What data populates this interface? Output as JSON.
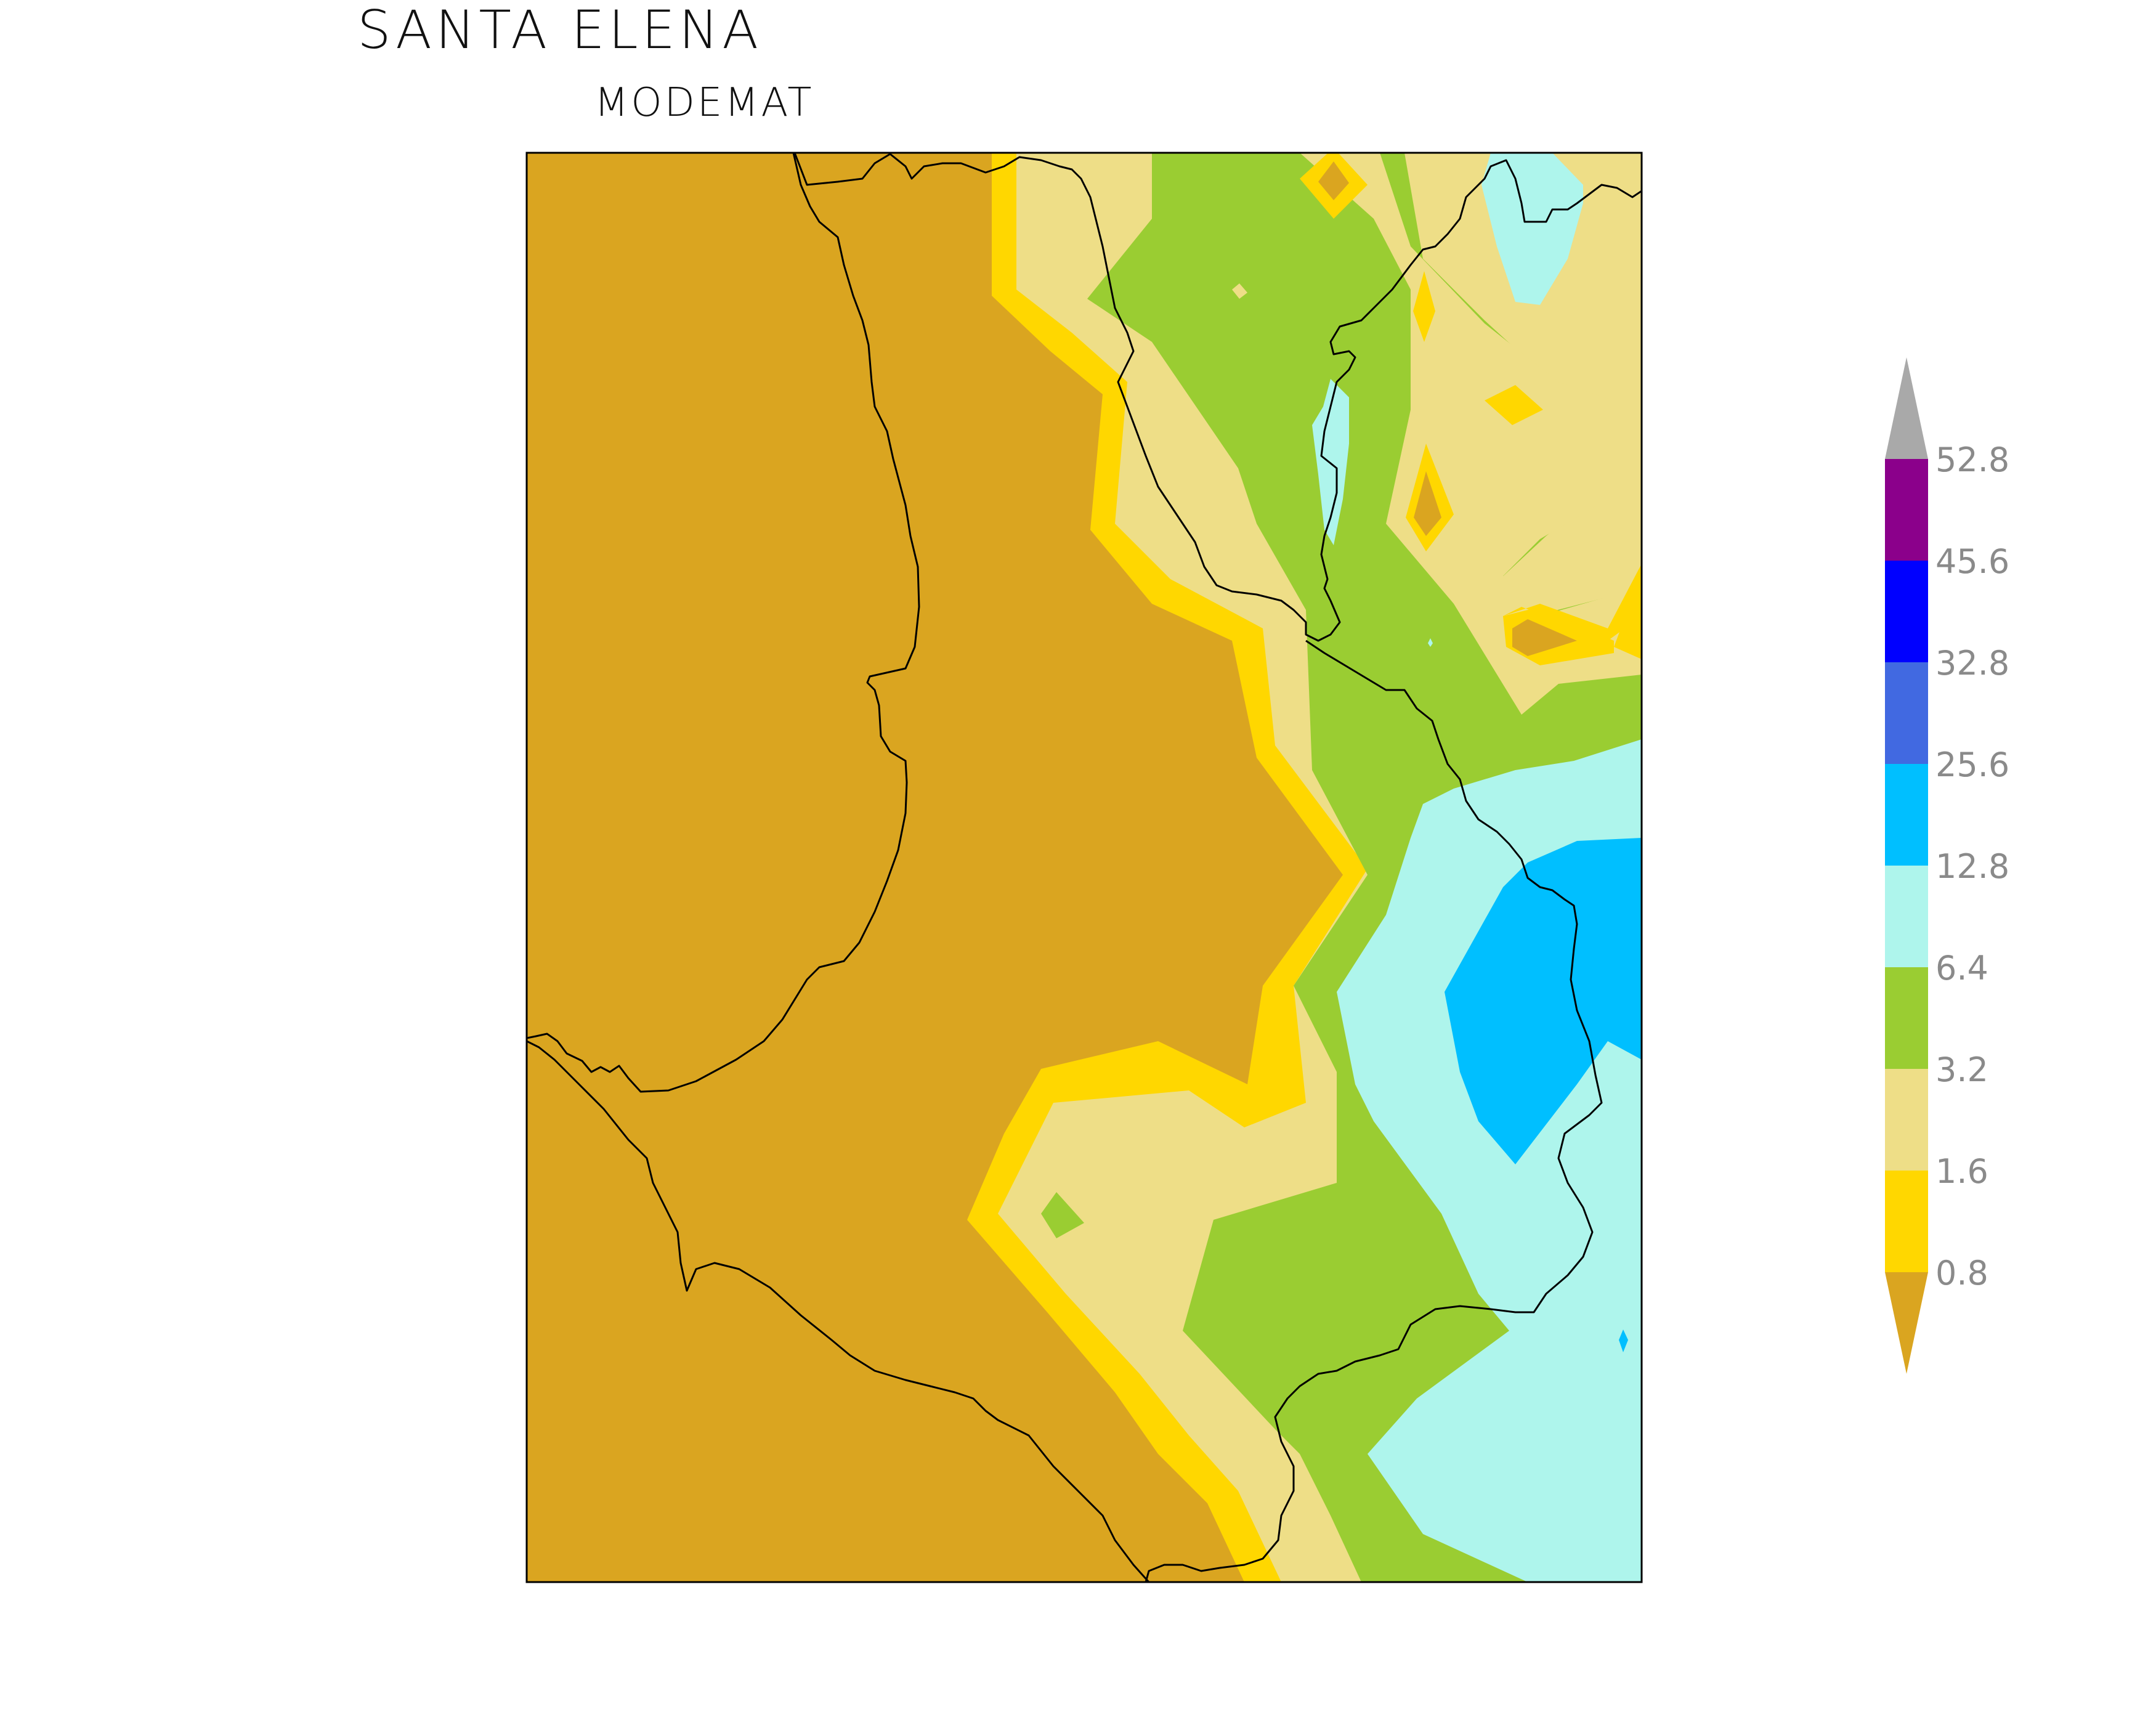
{
  "header": {
    "title": "SANTA  ELENA",
    "subtitle": "MODEMAT"
  },
  "colors": {
    "bg_low": "#DAA520",
    "c_0_8": "#FFD700",
    "c_1_6": "#EEDE87",
    "c_3_2": "#9ACD32",
    "c_6_4": "#AEF5EC",
    "c_12_8": "#00BFFF",
    "c_25_6": "#4169E1",
    "c_32_8": "#0000FF",
    "c_45_6": "#8B008B",
    "c_52_8": "#A9A9A9",
    "border": "#000000"
  },
  "legend": {
    "labels": [
      "52.8",
      "45.6",
      "32.8",
      "25.6",
      "12.8",
      "6.4",
      "3.2",
      "1.6",
      "0.8"
    ],
    "bins": [
      {
        "color": "#8B008B",
        "from": "45.6",
        "to": "52.8"
      },
      {
        "color": "#0000FF",
        "from": "32.8",
        "to": "45.6"
      },
      {
        "color": "#4169E1",
        "from": "25.6",
        "to": "32.8"
      },
      {
        "color": "#00BFFF",
        "from": "12.8",
        "to": "25.6"
      },
      {
        "color": "#AEF5EC",
        "from": "6.4",
        "to": "12.8"
      },
      {
        "color": "#9ACD32",
        "from": "3.2",
        "to": "6.4"
      },
      {
        "color": "#EEDE87",
        "from": "1.6",
        "to": "3.2"
      },
      {
        "color": "#FFD700",
        "from": "0.8",
        "to": "1.6"
      }
    ],
    "top_arrow_color": "#A9A9A9",
    "bottom_arrow_color": "#DAA520"
  }
}
